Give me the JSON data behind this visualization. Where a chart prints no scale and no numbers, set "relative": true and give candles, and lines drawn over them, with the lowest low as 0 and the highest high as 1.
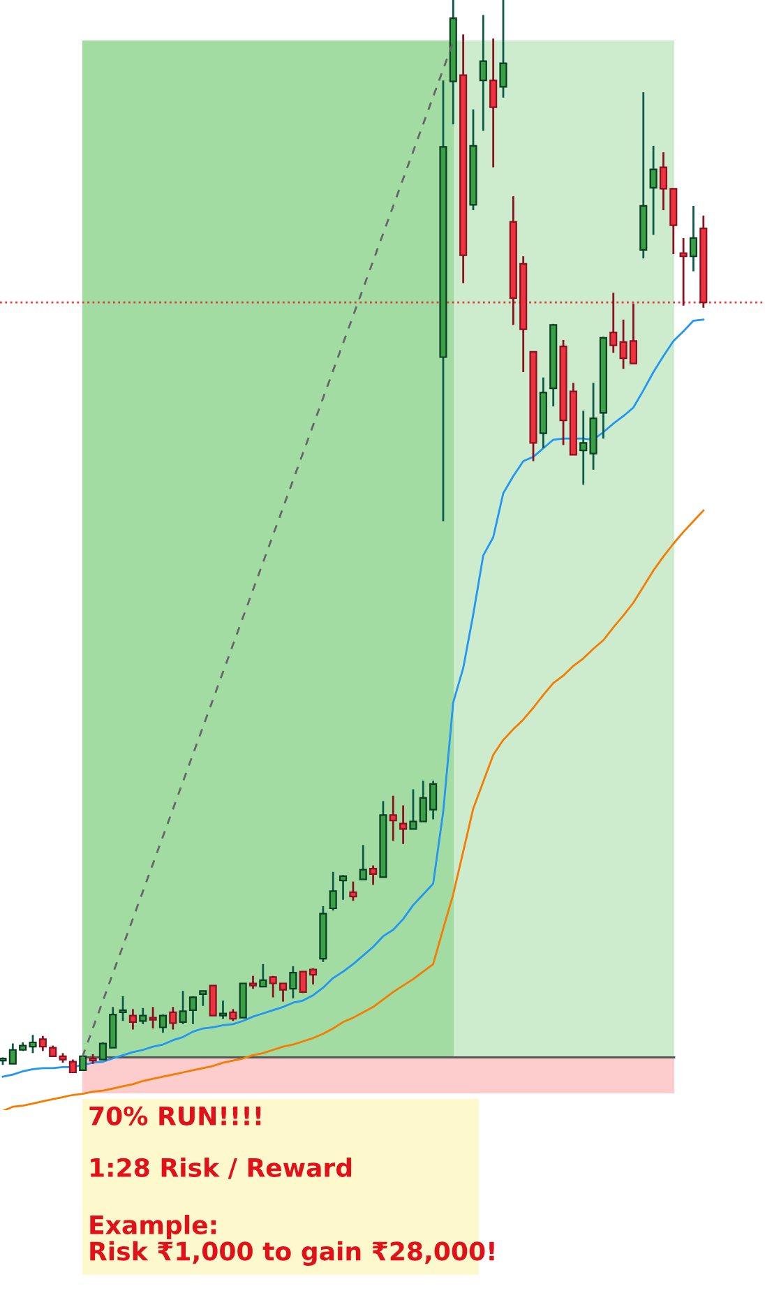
{
  "chart_data": {
    "type": "candlestick",
    "relative": true,
    "categories": [
      null,
      null,
      null,
      null,
      null,
      null,
      null,
      null,
      null,
      null,
      null,
      null,
      null,
      null,
      null,
      null,
      null,
      null,
      null,
      null,
      null,
      null,
      null,
      null,
      null,
      null,
      null,
      null,
      null,
      null,
      null,
      null,
      null,
      null,
      null,
      null,
      null,
      null,
      null,
      null,
      null,
      null,
      null,
      null,
      null,
      null,
      null,
      null,
      null,
      null,
      null,
      null,
      null,
      null,
      null,
      null,
      null,
      null,
      null,
      null,
      null,
      null,
      null,
      null,
      null,
      null,
      null,
      null,
      null,
      null,
      null
    ],
    "ohlc": [
      [
        0.011,
        0.014,
        0.007,
        0.011
      ],
      [
        0.008,
        0.027,
        0.008,
        0.021
      ],
      [
        0.021,
        0.028,
        0.02,
        0.025
      ],
      [
        0.024,
        0.035,
        0.018,
        0.028
      ],
      [
        0.031,
        0.034,
        0.02,
        0.024
      ],
      [
        0.023,
        0.025,
        0.015,
        0.015
      ],
      [
        0.015,
        0.018,
        0.009,
        0.012
      ],
      [
        0.01,
        0.012,
        0.0,
        0.0
      ],
      [
        0.002,
        0.016,
        0.002,
        0.015
      ],
      [
        0.012,
        0.017,
        0.008,
        0.011
      ],
      [
        0.012,
        0.028,
        0.012,
        0.027
      ],
      [
        0.023,
        0.061,
        0.023,
        0.054
      ],
      [
        0.056,
        0.071,
        0.048,
        0.057
      ],
      [
        0.053,
        0.059,
        0.04,
        0.047
      ],
      [
        0.048,
        0.06,
        0.045,
        0.053
      ],
      [
        0.051,
        0.061,
        0.041,
        0.049
      ],
      [
        0.042,
        0.054,
        0.037,
        0.053
      ],
      [
        0.056,
        0.061,
        0.04,
        0.046
      ],
      [
        0.047,
        0.076,
        0.045,
        0.057
      ],
      [
        0.058,
        0.071,
        0.045,
        0.07
      ],
      [
        0.073,
        0.076,
        0.062,
        0.076
      ],
      [
        0.081,
        0.081,
        0.053,
        0.053
      ],
      [
        0.053,
        0.067,
        0.05,
        0.054
      ],
      [
        0.056,
        0.059,
        0.048,
        0.05
      ],
      [
        0.051,
        0.083,
        0.051,
        0.083
      ],
      [
        0.082,
        0.09,
        0.078,
        0.081
      ],
      [
        0.08,
        0.101,
        0.08,
        0.086
      ],
      [
        0.089,
        0.09,
        0.07,
        0.083
      ],
      [
        0.083,
        0.083,
        0.066,
        0.077
      ],
      [
        0.078,
        0.099,
        0.069,
        0.093
      ],
      [
        0.094,
        0.094,
        0.074,
        0.075
      ],
      [
        0.096,
        0.097,
        0.082,
        0.091
      ],
      [
        0.106,
        0.155,
        0.103,
        0.148
      ],
      [
        0.153,
        0.187,
        0.151,
        0.169
      ],
      [
        0.179,
        0.184,
        0.161,
        0.183
      ],
      [
        0.168,
        0.178,
        0.16,
        0.164
      ],
      [
        0.18,
        0.212,
        0.18,
        0.189
      ],
      [
        0.19,
        0.193,
        0.175,
        0.185
      ],
      [
        0.182,
        0.253,
        0.182,
        0.24
      ],
      [
        0.24,
        0.258,
        0.216,
        0.235
      ],
      [
        0.232,
        0.249,
        0.213,
        0.227
      ],
      [
        0.227,
        0.264,
        0.227,
        0.234
      ],
      [
        0.234,
        0.272,
        0.234,
        0.256
      ],
      [
        0.245,
        0.272,
        0.236,
        0.269
      ],
      [
        0.667,
        0.925,
        0.514,
        0.863
      ],
      [
        0.924,
        1.0,
        0.884,
        0.983
      ],
      [
        0.93,
        0.968,
        0.736,
        0.762
      ],
      [
        0.809,
        0.898,
        0.804,
        0.864
      ],
      [
        0.925,
        0.986,
        0.878,
        0.943
      ],
      [
        0.925,
        0.964,
        0.844,
        0.9
      ],
      [
        0.919,
        1.0,
        0.909,
        0.941
      ],
      [
        0.793,
        0.817,
        0.697,
        0.722
      ],
      [
        0.754,
        0.761,
        0.653,
        0.693
      ],
      [
        0.672,
        0.672,
        0.57,
        0.587
      ],
      [
        0.596,
        0.648,
        0.582,
        0.634
      ],
      [
        0.638,
        0.698,
        0.621,
        0.697
      ],
      [
        0.677,
        0.683,
        0.585,
        0.608
      ],
      [
        0.635,
        0.643,
        0.576,
        0.576
      ],
      [
        0.58,
        0.617,
        0.548,
        0.587
      ],
      [
        0.577,
        0.643,
        0.562,
        0.61
      ],
      [
        0.615,
        0.686,
        0.591,
        0.685
      ],
      [
        0.69,
        0.727,
        0.671,
        0.678
      ],
      [
        0.681,
        0.702,
        0.656,
        0.666
      ],
      [
        0.682,
        0.717,
        0.661,
        0.661
      ],
      [
        0.767,
        0.914,
        0.759,
        0.808
      ],
      [
        0.825,
        0.864,
        0.781,
        0.842
      ],
      [
        0.844,
        0.858,
        0.804,
        0.824
      ],
      [
        0.824,
        0.824,
        0.763,
        0.79
      ],
      [
        0.764,
        0.778,
        0.715,
        0.761
      ],
      [
        0.761,
        0.808,
        0.747,
        0.778
      ],
      [
        0.787,
        0.799,
        0.713,
        0.718
      ]
    ],
    "series": [
      {
        "type": "line",
        "color": "#2196f3",
        "values": [
          -0.004,
          -0.002,
          0.001,
          0.003,
          0.004,
          0.004,
          0.005,
          0.005,
          0.007,
          0.009,
          0.01,
          0.013,
          0.016,
          0.019,
          0.021,
          0.024,
          0.026,
          0.03,
          0.033,
          0.038,
          0.041,
          0.042,
          0.044,
          0.045,
          0.048,
          0.052,
          0.055,
          0.058,
          0.061,
          0.065,
          0.067,
          0.072,
          0.079,
          0.088,
          0.094,
          0.101,
          0.109,
          0.117,
          0.127,
          0.133,
          0.143,
          0.156,
          0.166,
          0.176,
          0.243,
          0.345,
          0.377,
          0.427,
          0.482,
          0.499,
          0.54,
          0.556,
          0.57,
          0.574,
          0.582,
          0.59,
          0.591,
          0.591,
          0.591,
          0.59,
          0.597,
          0.605,
          0.612,
          0.62,
          0.636,
          0.653,
          0.668,
          0.682,
          0.691,
          0.701,
          0.702
        ]
      },
      {
        "type": "line",
        "color": "#f57c00",
        "values": [
          -0.036,
          -0.032,
          -0.031,
          -0.029,
          -0.027,
          -0.025,
          -0.023,
          -0.021,
          -0.02,
          -0.018,
          -0.017,
          -0.015,
          -0.013,
          -0.011,
          -0.008,
          -0.006,
          -0.004,
          -0.002,
          0.0,
          0.002,
          0.004,
          0.006,
          0.009,
          0.011,
          0.013,
          0.016,
          0.018,
          0.021,
          0.024,
          0.026,
          0.029,
          0.032,
          0.036,
          0.041,
          0.047,
          0.051,
          0.056,
          0.061,
          0.068,
          0.075,
          0.081,
          0.087,
          0.094,
          0.101,
          0.134,
          0.166,
          0.206,
          0.246,
          0.271,
          0.296,
          0.31,
          0.32,
          0.329,
          0.34,
          0.352,
          0.363,
          0.37,
          0.379,
          0.386,
          0.395,
          0.403,
          0.415,
          0.426,
          0.438,
          0.453,
          0.468,
          0.481,
          0.493,
          0.504,
          0.514,
          0.524
        ]
      }
    ],
    "ref_lines": [
      {
        "axis": "y",
        "value": 0.718,
        "color": "#e53935",
        "line_style": "dotted"
      },
      {
        "axis": "y",
        "value": 0.014,
        "color": "#555555",
        "line_style": "solid"
      }
    ],
    "annotations": [
      "70% RUN!!!!",
      "1:28 Risk / Reward",
      "Example:\nRisk ₹1,000 to gain ₹28,000!"
    ]
  }
}
